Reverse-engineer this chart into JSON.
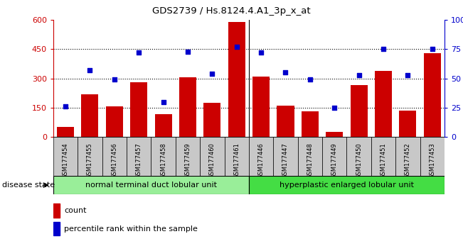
{
  "title": "GDS2739 / Hs.8124.4.A1_3p_x_at",
  "samples": [
    "GSM177454",
    "GSM177455",
    "GSM177456",
    "GSM177457",
    "GSM177458",
    "GSM177459",
    "GSM177460",
    "GSM177461",
    "GSM177446",
    "GSM177447",
    "GSM177448",
    "GSM177449",
    "GSM177450",
    "GSM177451",
    "GSM177452",
    "GSM177453"
  ],
  "counts": [
    50,
    220,
    155,
    280,
    115,
    305,
    175,
    590,
    310,
    160,
    130,
    25,
    265,
    340,
    135,
    430
  ],
  "percentiles": [
    26,
    57,
    49,
    72,
    30,
    73,
    54,
    77,
    72,
    55,
    49,
    25,
    53,
    75,
    53,
    75
  ],
  "group1_label": "normal terminal duct lobular unit",
  "group2_label": "hyperplastic enlarged lobular unit",
  "group1_count": 8,
  "group2_count": 8,
  "ylim_left": [
    0,
    600
  ],
  "ylim_right": [
    0,
    100
  ],
  "yticks_left": [
    0,
    150,
    300,
    450,
    600
  ],
  "yticks_right": [
    0,
    25,
    50,
    75,
    100
  ],
  "bar_color": "#cc0000",
  "dot_color": "#0000cc",
  "group1_color": "#99ee99",
  "group2_color": "#44dd44",
  "bg_color": "#c8c8c8",
  "disease_state_label": "disease state",
  "legend_count_label": "count",
  "legend_percentile_label": "percentile rank within the sample"
}
